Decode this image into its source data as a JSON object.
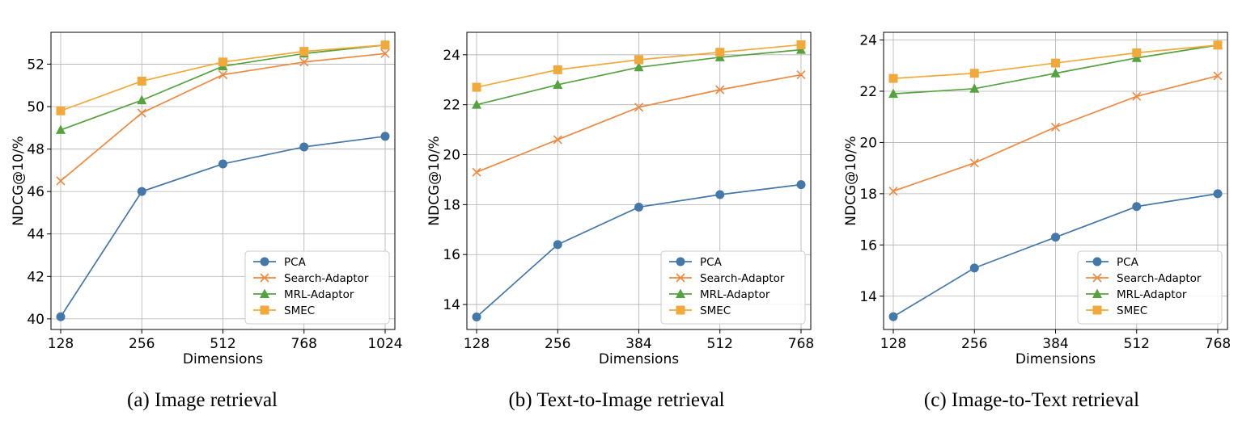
{
  "series_styles": [
    {
      "name": "PCA",
      "color": "#4477aa",
      "marker": "circle"
    },
    {
      "name": "Search-Adaptor",
      "color": "#f0883e",
      "marker": "x"
    },
    {
      "name": "MRL-Adaptor",
      "color": "#55a33e",
      "marker": "triangle"
    },
    {
      "name": "SMEC",
      "color": "#f2a93b",
      "marker": "square"
    }
  ],
  "chart_data": [
    {
      "type": "line",
      "caption": "(a) Image retrieval",
      "xlabel": "Dimensions",
      "ylabel": "NDCG@10/%",
      "categories": [
        "128",
        "256",
        "512",
        "768",
        "1024"
      ],
      "ylim": [
        39.5,
        53.5
      ],
      "yticks": [
        40,
        42,
        44,
        46,
        48,
        50,
        52
      ],
      "grid": true,
      "legend": "lower-right",
      "series": [
        {
          "name": "PCA",
          "values": [
            40.1,
            46.0,
            47.3,
            48.1,
            48.6
          ]
        },
        {
          "name": "Search-Adaptor",
          "values": [
            46.5,
            49.7,
            51.5,
            52.1,
            52.5
          ]
        },
        {
          "name": "MRL-Adaptor",
          "values": [
            48.9,
            50.3,
            51.9,
            52.5,
            52.9
          ]
        },
        {
          "name": "SMEC",
          "values": [
            49.8,
            51.2,
            52.1,
            52.6,
            52.9
          ]
        }
      ]
    },
    {
      "type": "line",
      "caption": "(b) Text-to-Image retrieval",
      "xlabel": "Dimensions",
      "ylabel": "NDCG@10/%",
      "categories": [
        "128",
        "256",
        "384",
        "512",
        "768"
      ],
      "ylim": [
        13.0,
        24.9
      ],
      "yticks": [
        14,
        16,
        18,
        20,
        22,
        24
      ],
      "grid": true,
      "legend": "lower-right",
      "series": [
        {
          "name": "PCA",
          "values": [
            13.5,
            16.4,
            17.9,
            18.4,
            18.8
          ]
        },
        {
          "name": "Search-Adaptor",
          "values": [
            19.3,
            20.6,
            21.9,
            22.6,
            23.2
          ]
        },
        {
          "name": "MRL-Adaptor",
          "values": [
            22.0,
            22.8,
            23.5,
            23.9,
            24.2
          ]
        },
        {
          "name": "SMEC",
          "values": [
            22.7,
            23.4,
            23.8,
            24.1,
            24.4
          ]
        }
      ]
    },
    {
      "type": "line",
      "caption": "(c) Image-to-Text retrieval",
      "xlabel": "Dimensions",
      "ylabel": "NDCG@10/%",
      "categories": [
        "128",
        "256",
        "384",
        "512",
        "768"
      ],
      "ylim": [
        12.7,
        24.3
      ],
      "yticks": [
        14,
        16,
        18,
        20,
        22,
        24
      ],
      "grid": true,
      "legend": "lower-right",
      "series": [
        {
          "name": "PCA",
          "values": [
            13.2,
            15.1,
            16.3,
            17.5,
            18.0
          ]
        },
        {
          "name": "Search-Adaptor",
          "values": [
            18.1,
            19.2,
            20.6,
            21.8,
            22.6
          ]
        },
        {
          "name": "MRL-Adaptor",
          "values": [
            21.9,
            22.1,
            22.7,
            23.3,
            23.8
          ]
        },
        {
          "name": "SMEC",
          "values": [
            22.5,
            22.7,
            23.1,
            23.5,
            23.8
          ]
        }
      ]
    }
  ]
}
